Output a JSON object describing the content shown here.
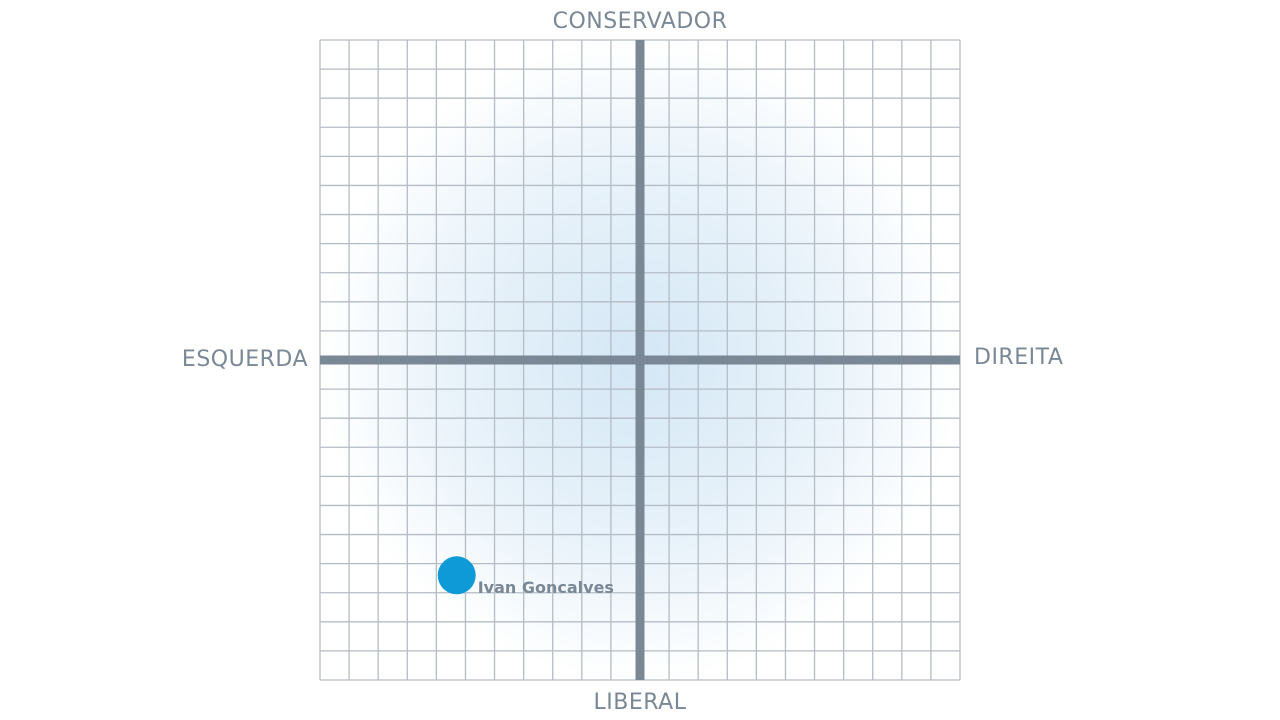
{
  "chart_data": {
    "type": "scatter",
    "axis_labels": {
      "top": "CONSERVADOR",
      "bottom": "LIBERAL",
      "left": "ESQUERDA",
      "right": "DIREITA"
    },
    "series": [
      {
        "name": "Ivan Goncalves",
        "color": "#0e9ad7",
        "x": [
          -6.3
        ],
        "y": [
          -7.4
        ]
      }
    ],
    "xlim": [
      -11,
      11
    ],
    "ylim": [
      -11,
      11
    ],
    "xticks": [
      -11,
      -10,
      -9,
      -8,
      -7,
      -6,
      -5,
      -4,
      -3,
      -2,
      -1,
      0,
      1,
      2,
      3,
      4,
      5,
      6,
      7,
      8,
      9,
      10,
      11
    ],
    "yticks": [
      -11,
      -10,
      -9,
      -8,
      -7,
      -6,
      -5,
      -4,
      -3,
      -2,
      -1,
      0,
      1,
      2,
      3,
      4,
      5,
      6,
      7,
      8,
      9,
      10,
      11
    ],
    "grid": true
  }
}
